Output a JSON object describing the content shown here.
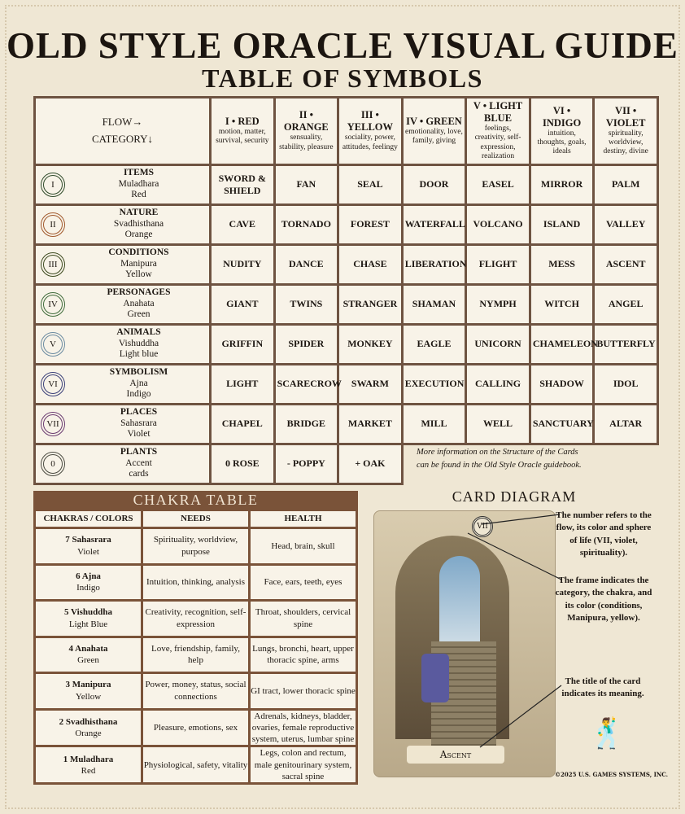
{
  "title": "OLD STYLE ORACLE VISUAL GUIDE",
  "subtitle": "TABLE OF SYMBOLS",
  "symbols": {
    "corner": {
      "line1": "FLOW→",
      "line2": "CATEGORY↓"
    },
    "flows": [
      {
        "name": "I • RED",
        "desc": "motion, matter, survival, security"
      },
      {
        "name": "II • ORANGE",
        "desc": "sensuality, stability, pleasure"
      },
      {
        "name": "III • YELLOW",
        "desc": "sociality, power, attitudes, feelingy"
      },
      {
        "name": "IV • GREEN",
        "desc": "emotionality, love, family, giving"
      },
      {
        "name": "V • LIGHT BLUE",
        "desc": "feelings, creativity, self-expression, realization"
      },
      {
        "name": "VI • INDIGO",
        "desc": "intuition, thoughts, goals, ideals"
      },
      {
        "name": "VII • VIOLET",
        "desc": "spirituality, worldview, destiny, divine"
      }
    ],
    "categories": [
      {
        "numeral": "I",
        "name": "ITEMS",
        "chakra": "Muladhara",
        "color": "Red",
        "frame_color": "#2f4a2a",
        "cells": [
          "SWORD & SHIELD",
          "FAN",
          "SEAL",
          "DOOR",
          "EASEL",
          "MIRROR",
          "PALM"
        ]
      },
      {
        "numeral": "II",
        "name": "NATURE",
        "chakra": "Svadhisthana",
        "color": "Orange",
        "frame_color": "#a0582c",
        "cells": [
          "CAVE",
          "TORNADO",
          "FOREST",
          "WATERFALL",
          "VOLCANO",
          "ISLAND",
          "VALLEY"
        ]
      },
      {
        "numeral": "III",
        "name": "CONDITIONS",
        "chakra": "Manipura",
        "color": "Yellow",
        "frame_color": "#3d4a1f",
        "cells": [
          "NUDITY",
          "DANCE",
          "CHASE",
          "LIBERATION",
          "FLIGHT",
          "MESS",
          "ASCENT"
        ]
      },
      {
        "numeral": "IV",
        "name": "PERSONAGES",
        "chakra": "Anahata",
        "color": "Green",
        "frame_color": "#3f6b3a",
        "cells": [
          "GIANT",
          "TWINS",
          "STRANGER",
          "SHAMAN",
          "NYMPH",
          "WITCH",
          "ANGEL"
        ]
      },
      {
        "numeral": "V",
        "name": "ANIMALS",
        "chakra": "Vishuddha",
        "color": "Light blue",
        "frame_color": "#6a8aa0",
        "cells": [
          "GRIFFIN",
          "SPIDER",
          "MONKEY",
          "EAGLE",
          "UNICORN",
          "CHAMELEON",
          "BUTTERFLY"
        ]
      },
      {
        "numeral": "VI",
        "name": "SYMBOLISM",
        "chakra": "Ajna",
        "color": "Indigo",
        "frame_color": "#3a3f78",
        "cells": [
          "LIGHT",
          "SCARECROW",
          "SWARM",
          "EXECUTION",
          "CALLING",
          "SHADOW",
          "IDOL"
        ]
      },
      {
        "numeral": "VII",
        "name": "PLACES",
        "chakra": "Sahasrara",
        "color": "Violet",
        "frame_color": "#6a3a70",
        "cells": [
          "CHAPEL",
          "BRIDGE",
          "MARKET",
          "MILL",
          "WELL",
          "SANCTUARY",
          "ALTAR"
        ]
      },
      {
        "numeral": "0",
        "name": "PLANTS",
        "chakra": "Accent",
        "color": "cards",
        "frame_color": "#4a4a40",
        "cells": [
          "0 ROSE",
          "- POPPY",
          "+ OAK"
        ]
      }
    ]
  },
  "note": {
    "line1": "More information on the Structure of the Cards",
    "line2": "can be found in the Old Style Oracle guidebook."
  },
  "chakra_table": {
    "title": "CHAKRA TABLE",
    "headers": [
      "CHAKRAS / COLORS",
      "NEEDS",
      "HEALTH"
    ],
    "rows": [
      {
        "chakra": "7 Sahasrara",
        "color": "Violet",
        "needs": "Spirituality, worldview, purpose",
        "health": "Head, brain, skull"
      },
      {
        "chakra": "6 Ajna",
        "color": "Indigo",
        "needs": "Intuition, thinking, analysis",
        "health": "Face, ears, teeth, eyes"
      },
      {
        "chakra": "5 Vishuddha",
        "color": "Light Blue",
        "needs": "Creativity, recognition, self-expression",
        "health": "Throat, shoulders, cervical spine"
      },
      {
        "chakra": "4 Anahata",
        "color": "Green",
        "needs": "Love, friendship, family, help",
        "health": "Lungs, bronchi, heart, upper thoracic spine, arms"
      },
      {
        "chakra": "3 Manipura",
        "color": "Yellow",
        "needs": "Power, money, status, social connections",
        "health": "GI tract, lower thoracic spine"
      },
      {
        "chakra": "2 Svadhisthana",
        "color": "Orange",
        "needs": "Pleasure, emotions, sex",
        "health": "Adrenals, kidneys, bladder, ovaries, female reproductive system, uterus, lumbar spine"
      },
      {
        "chakra": "1 Muladhara",
        "color": "Red",
        "needs": "Physiological, safety, vitality",
        "health": "Legs, colon and rectum, male genitourinary system, sacral spine"
      }
    ]
  },
  "card_diagram": {
    "title": "CARD DIAGRAM",
    "card_numeral": "VII",
    "card_title": "Ascent",
    "annotations": [
      "The number refers to the flow, its color and sphere of life (VII, violet, spirituality).",
      "The frame indicates the category, the chakra, and its color (conditions, Manipura, yellow).",
      "The title of the card indicates its meaning."
    ]
  },
  "copyright": "©2025 U.S. GAMES SYSTEMS, INC."
}
